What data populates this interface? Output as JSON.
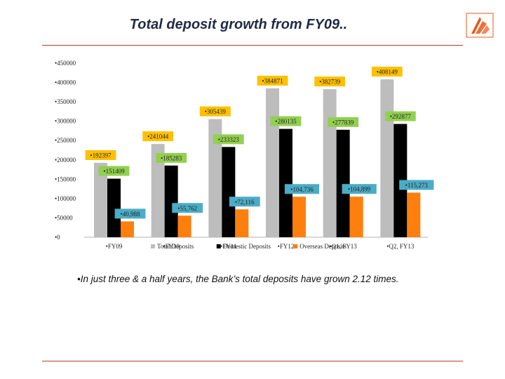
{
  "page": {
    "title": "Total deposit growth from FY09..",
    "footnote": "In just three & a half years, the Bank’s total deposits have grown 2.12 times."
  },
  "logo": {
    "icon": "bank-of-baroda-logo-icon",
    "color": "#e8591a"
  },
  "chart_data": {
    "type": "bar",
    "categories": [
      "FY09",
      "FY10",
      "FY11",
      "FY12",
      "Q1, FY13",
      "Q2, FY13"
    ],
    "ylim": [
      0,
      450000
    ],
    "yticks": [
      "0",
      "50000",
      "100000",
      "150000",
      "200000",
      "250000",
      "300000",
      "350000",
      "400000",
      "450000"
    ],
    "grid": false,
    "legend": "bottom",
    "series": [
      {
        "name": "Total Deposits",
        "color": "#bdbdbd",
        "values": [
          192397,
          241044,
          305439,
          384871,
          382739,
          408149
        ],
        "labels": [
          "192397",
          "241044",
          "305439",
          "384871",
          "382739",
          "408149"
        ]
      },
      {
        "name": "Domestic Deposits",
        "color": "#000000",
        "values": [
          151409,
          185283,
          233323,
          280135,
          277839,
          292877
        ],
        "labels": [
          "151409",
          "185283",
          "233323",
          "280135",
          "277839",
          "292877"
        ]
      },
      {
        "name": "Overseas Deposits",
        "color": "#ff7f0e",
        "values": [
          40988,
          55762,
          72116,
          104736,
          104899,
          115273
        ],
        "labels": [
          "40,988",
          "55,762",
          "72,116",
          "104,736",
          "104,899",
          "115,273"
        ]
      }
    ],
    "label_colors": [
      "#ffc000",
      "#92d050",
      "#4bacc6"
    ]
  }
}
